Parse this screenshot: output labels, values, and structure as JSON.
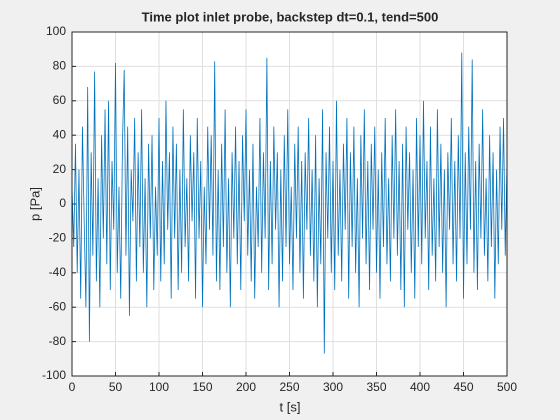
{
  "chart_data": {
    "type": "line",
    "title": "Time plot inlet probe, backstep dt=0.1, tend=500",
    "x_label": "t [s]",
    "y_label": "p [Pa]",
    "xlim": [
      0,
      500
    ],
    "xticks": [
      0,
      50,
      100,
      150,
      200,
      250,
      300,
      350,
      400,
      450,
      500
    ],
    "ylim": [
      -100,
      100
    ],
    "yticks": [
      -100,
      -80,
      -60,
      -40,
      -20,
      0,
      20,
      40,
      60,
      80,
      100
    ],
    "grid": true,
    "x": [
      0,
      2,
      4,
      6,
      8,
      10,
      12,
      14,
      16,
      18,
      20,
      22,
      24,
      26,
      28,
      30,
      32,
      34,
      36,
      38,
      40,
      42,
      44,
      46,
      48,
      50,
      52,
      54,
      56,
      58,
      60,
      62,
      64,
      66,
      68,
      70,
      72,
      74,
      76,
      78,
      80,
      82,
      84,
      86,
      88,
      90,
      92,
      94,
      96,
      98,
      100,
      102,
      104,
      106,
      108,
      110,
      112,
      114,
      116,
      118,
      120,
      122,
      124,
      126,
      128,
      130,
      132,
      134,
      136,
      138,
      140,
      142,
      144,
      146,
      148,
      150,
      152,
      154,
      156,
      158,
      160,
      162,
      164,
      166,
      168,
      170,
      172,
      174,
      176,
      178,
      180,
      182,
      184,
      186,
      188,
      190,
      192,
      194,
      196,
      198,
      200,
      202,
      204,
      206,
      208,
      210,
      212,
      214,
      216,
      218,
      220,
      222,
      224,
      226,
      228,
      230,
      232,
      234,
      236,
      238,
      240,
      242,
      244,
      246,
      248,
      250,
      252,
      254,
      256,
      258,
      260,
      262,
      264,
      266,
      268,
      270,
      272,
      274,
      276,
      278,
      280,
      282,
      284,
      286,
      288,
      290,
      292,
      294,
      296,
      298,
      300,
      302,
      304,
      306,
      308,
      310,
      312,
      314,
      316,
      318,
      320,
      322,
      324,
      326,
      328,
      330,
      332,
      334,
      336,
      338,
      340,
      342,
      344,
      346,
      348,
      350,
      352,
      354,
      356,
      358,
      360,
      362,
      364,
      366,
      368,
      370,
      372,
      374,
      376,
      378,
      380,
      382,
      384,
      386,
      388,
      390,
      392,
      394,
      396,
      398,
      400,
      402,
      404,
      406,
      408,
      410,
      412,
      414,
      416,
      418,
      420,
      422,
      424,
      426,
      428,
      430,
      432,
      434,
      436,
      438,
      440,
      442,
      444,
      446,
      448,
      450,
      452,
      454,
      456,
      458,
      460,
      462,
      464,
      466,
      468,
      470,
      472,
      474,
      476,
      478,
      480,
      482,
      484,
      486,
      488,
      490,
      492,
      494,
      496,
      498,
      500
    ],
    "series": [
      {
        "name": "p",
        "color": "#0072BD",
        "values": [
          10,
          -25,
          35,
          -40,
          20,
          -55,
          45,
          -10,
          -60,
          68,
          -80,
          30,
          -30,
          77,
          -45,
          15,
          -60,
          40,
          -20,
          55,
          -35,
          60,
          -50,
          25,
          -15,
          82,
          -40,
          10,
          -55,
          35,
          78,
          -30,
          45,
          -65,
          20,
          -10,
          50,
          -45,
          30,
          -25,
          55,
          -40,
          15,
          -60,
          35,
          -20,
          40,
          -50,
          10,
          -30,
          50,
          -45,
          25,
          -35,
          60,
          -15,
          30,
          -55,
          45,
          -20,
          35,
          -50,
          20,
          -40,
          55,
          -25,
          15,
          -45,
          40,
          -10,
          30,
          -55,
          50,
          -20,
          25,
          -60,
          10,
          -35,
          45,
          -15,
          40,
          -30,
          83,
          -45,
          20,
          -50,
          35,
          -25,
          55,
          -40,
          15,
          -60,
          30,
          -20,
          45,
          -35,
          25,
          -50,
          40,
          -10,
          55,
          -30,
          20,
          -45,
          35,
          -55,
          10,
          -25,
          50,
          -40,
          30,
          -20,
          85,
          -50,
          25,
          -35,
          45,
          -15,
          30,
          -60,
          20,
          -45,
          40,
          -25,
          55,
          -35,
          10,
          -50,
          35,
          -20,
          45,
          -40,
          25,
          -55,
          30,
          -15,
          50,
          -30,
          20,
          -45,
          40,
          -60,
          15,
          -35,
          55,
          -87,
          30,
          -20,
          45,
          -40,
          25,
          -50,
          60,
          -30,
          20,
          -45,
          35,
          -15,
          50,
          -55,
          30,
          -25,
          45,
          -40,
          15,
          -60,
          40,
          -20,
          55,
          -35,
          25,
          -50,
          35,
          -15,
          45,
          -40,
          20,
          -55,
          30,
          -25,
          50,
          -35,
          15,
          -45,
          40,
          -20,
          55,
          -30,
          25,
          -50,
          35,
          -60,
          45,
          -15,
          30,
          -40,
          20,
          -55,
          50,
          -25,
          40,
          -35,
          60,
          -20,
          25,
          -50,
          45,
          -30,
          15,
          -45,
          55,
          -25,
          35,
          -40,
          20,
          -60,
          30,
          -15,
          50,
          -35,
          25,
          -45,
          40,
          -20,
          88,
          -55,
          30,
          -35,
          45,
          -15,
          84,
          -40,
          25,
          -50,
          35,
          -20,
          55,
          -30,
          15,
          -45,
          40,
          -25,
          30,
          -55,
          20,
          -35,
          45,
          -15,
          50,
          -30,
          25
        ]
      }
    ]
  }
}
